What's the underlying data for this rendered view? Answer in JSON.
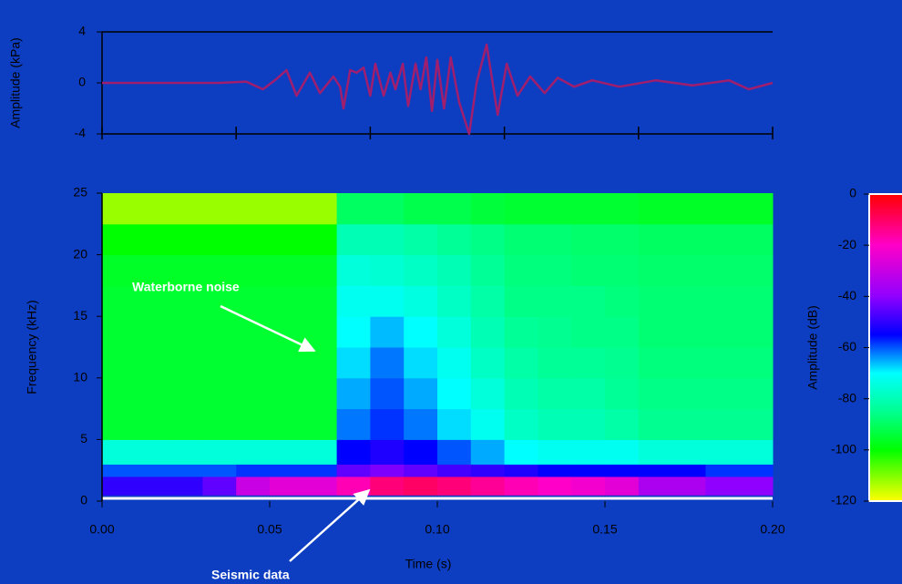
{
  "chart_data": [
    {
      "type": "line",
      "ylabel": "Amplitude (kPa)",
      "x": [
        0,
        0.035,
        0.043,
        0.048,
        0.052,
        0.055,
        0.058,
        0.062,
        0.065,
        0.069,
        0.071,
        0.072,
        0.074,
        0.076,
        0.078,
        0.08,
        0.0815,
        0.084,
        0.086,
        0.0875,
        0.0897,
        0.0913,
        0.0935,
        0.095,
        0.0967,
        0.0984,
        0.1,
        0.102,
        0.104,
        0.1065,
        0.1095,
        0.1117,
        0.1147,
        0.118,
        0.1207,
        0.1239,
        0.1277,
        0.132,
        0.1359,
        0.1408,
        0.1462,
        0.1543,
        0.1652,
        0.1761,
        0.187,
        0.1929,
        0.2
      ],
      "series": [
        {
          "color": "#a01e6e",
          "values": [
            0,
            0,
            0.1,
            -0.5,
            0.3,
            1.0,
            -1.0,
            0.8,
            -0.8,
            0.5,
            -0.3,
            -2.0,
            1.0,
            0.8,
            1.2,
            -1.0,
            1.5,
            -1.0,
            0.8,
            -0.5,
            1.5,
            -1.8,
            1.5,
            -0.5,
            2.0,
            -2.2,
            1.8,
            -2.0,
            2.0,
            -1.5,
            -4.0,
            0,
            3.0,
            -2.5,
            1.5,
            -1.0,
            0.5,
            -0.8,
            0.4,
            -0.3,
            0.2,
            -0.3,
            0.2,
            -0.2,
            0.2,
            -0.5,
            0
          ]
        }
      ],
      "xlim": [
        0,
        0.2
      ],
      "xticks": [
        0,
        0.04,
        0.08,
        0.12,
        0.16,
        0.2
      ],
      "ylim": [
        -4,
        4
      ],
      "yticks": [
        -4,
        0,
        4
      ]
    },
    {
      "type": "heatmap",
      "xlabel": "Time (s)",
      "ylabel": "Frequency (kHz)",
      "x": [
        0,
        0.01,
        0.02,
        0.03,
        0.04,
        0.05,
        0.06,
        0.07,
        0.08,
        0.09,
        0.1,
        0.11,
        0.12,
        0.13,
        0.14,
        0.15,
        0.16,
        0.17,
        0.18,
        0.19,
        0.2
      ],
      "y": [
        0.5,
        2,
        3,
        5,
        7.5,
        10,
        12.5,
        15,
        17.5,
        20,
        22.5,
        25
      ],
      "z": [
        [
          -50,
          -50,
          -50,
          -45,
          -30,
          -25,
          -25,
          -18,
          -12,
          -10,
          -12,
          -15,
          -18,
          -20,
          -22,
          -25,
          -35,
          -35,
          -40,
          -40
        ],
        [
          -60,
          -60,
          -60,
          -60,
          -58,
          -58,
          -58,
          -45,
          -42,
          -45,
          -48,
          -50,
          -52,
          -55,
          -55,
          -55,
          -55,
          -55,
          -58,
          -58
        ],
        [
          -75,
          -75,
          -75,
          -75,
          -75,
          -75,
          -75,
          -55,
          -52,
          -55,
          -60,
          -65,
          -70,
          -72,
          -72,
          -72,
          -75,
          -75,
          -75,
          -75
        ],
        [
          -95,
          -95,
          -95,
          -95,
          -95,
          -95,
          -95,
          -62,
          -58,
          -62,
          -68,
          -72,
          -78,
          -80,
          -80,
          -82,
          -85,
          -85,
          -85,
          -85
        ],
        [
          -95,
          -95,
          -95,
          -95,
          -95,
          -95,
          -95,
          -65,
          -60,
          -65,
          -70,
          -75,
          -80,
          -82,
          -82,
          -84,
          -86,
          -86,
          -86,
          -86
        ],
        [
          -95,
          -95,
          -95,
          -95,
          -95,
          -95,
          -95,
          -68,
          -62,
          -68,
          -72,
          -78,
          -82,
          -84,
          -84,
          -85,
          -87,
          -87,
          -87,
          -87
        ],
        [
          -95,
          -95,
          -95,
          -95,
          -95,
          -95,
          -95,
          -70,
          -66,
          -70,
          -75,
          -80,
          -84,
          -85,
          -86,
          -86,
          -88,
          -88,
          -88,
          -88
        ],
        [
          -95,
          -95,
          -95,
          -95,
          -95,
          -95,
          -95,
          -72,
          -72,
          -74,
          -78,
          -82,
          -86,
          -86,
          -86,
          -87,
          -88,
          -88,
          -88,
          -88
        ],
        [
          -96,
          -96,
          -96,
          -96,
          -96,
          -96,
          -96,
          -75,
          -76,
          -78,
          -80,
          -84,
          -87,
          -87,
          -88,
          -88,
          -89,
          -89,
          -89,
          -89
        ],
        [
          -100,
          -100,
          -100,
          -100,
          -100,
          -100,
          -100,
          -80,
          -80,
          -82,
          -84,
          -86,
          -88,
          -88,
          -89,
          -89,
          -90,
          -90,
          -90,
          -90
        ],
        [
          -112,
          -112,
          -112,
          -112,
          -112,
          -112,
          -112,
          -90,
          -90,
          -92,
          -92,
          -94,
          -95,
          -95,
          -95,
          -95,
          -96,
          -96,
          -96,
          -96
        ]
      ],
      "xlim": [
        0,
        0.2
      ],
      "xticks": [
        {
          "value": 0,
          "label": "0.00"
        },
        {
          "value": 0.05,
          "label": "0.05"
        },
        {
          "value": 0.1,
          "label": "0.10"
        },
        {
          "value": 0.15,
          "label": "0.15"
        },
        {
          "value": 0.2,
          "label": "0.20"
        }
      ],
      "ylim": [
        0,
        25
      ],
      "yticks": [
        0,
        5,
        10,
        15,
        20,
        25
      ],
      "colorscale": [
        [
          0,
          "#ff0000"
        ],
        [
          -20,
          "#ff00c8"
        ],
        [
          -40,
          "#9000ff"
        ],
        [
          -55,
          "#0000ff"
        ],
        [
          -70,
          "#00ffff"
        ],
        [
          -85,
          "#00ff90"
        ],
        [
          -100,
          "#00ff00"
        ],
        [
          -120,
          "#ffff00"
        ]
      ],
      "colorbar": {
        "label": "Amplitude (dB)",
        "lim": [
          -120,
          0
        ],
        "ticks": [
          0,
          -20,
          -40,
          -60,
          -80,
          -100,
          -120
        ]
      },
      "annotations": [
        {
          "text": "Waterborne noise"
        },
        {
          "text": "Seismic data"
        }
      ]
    }
  ]
}
